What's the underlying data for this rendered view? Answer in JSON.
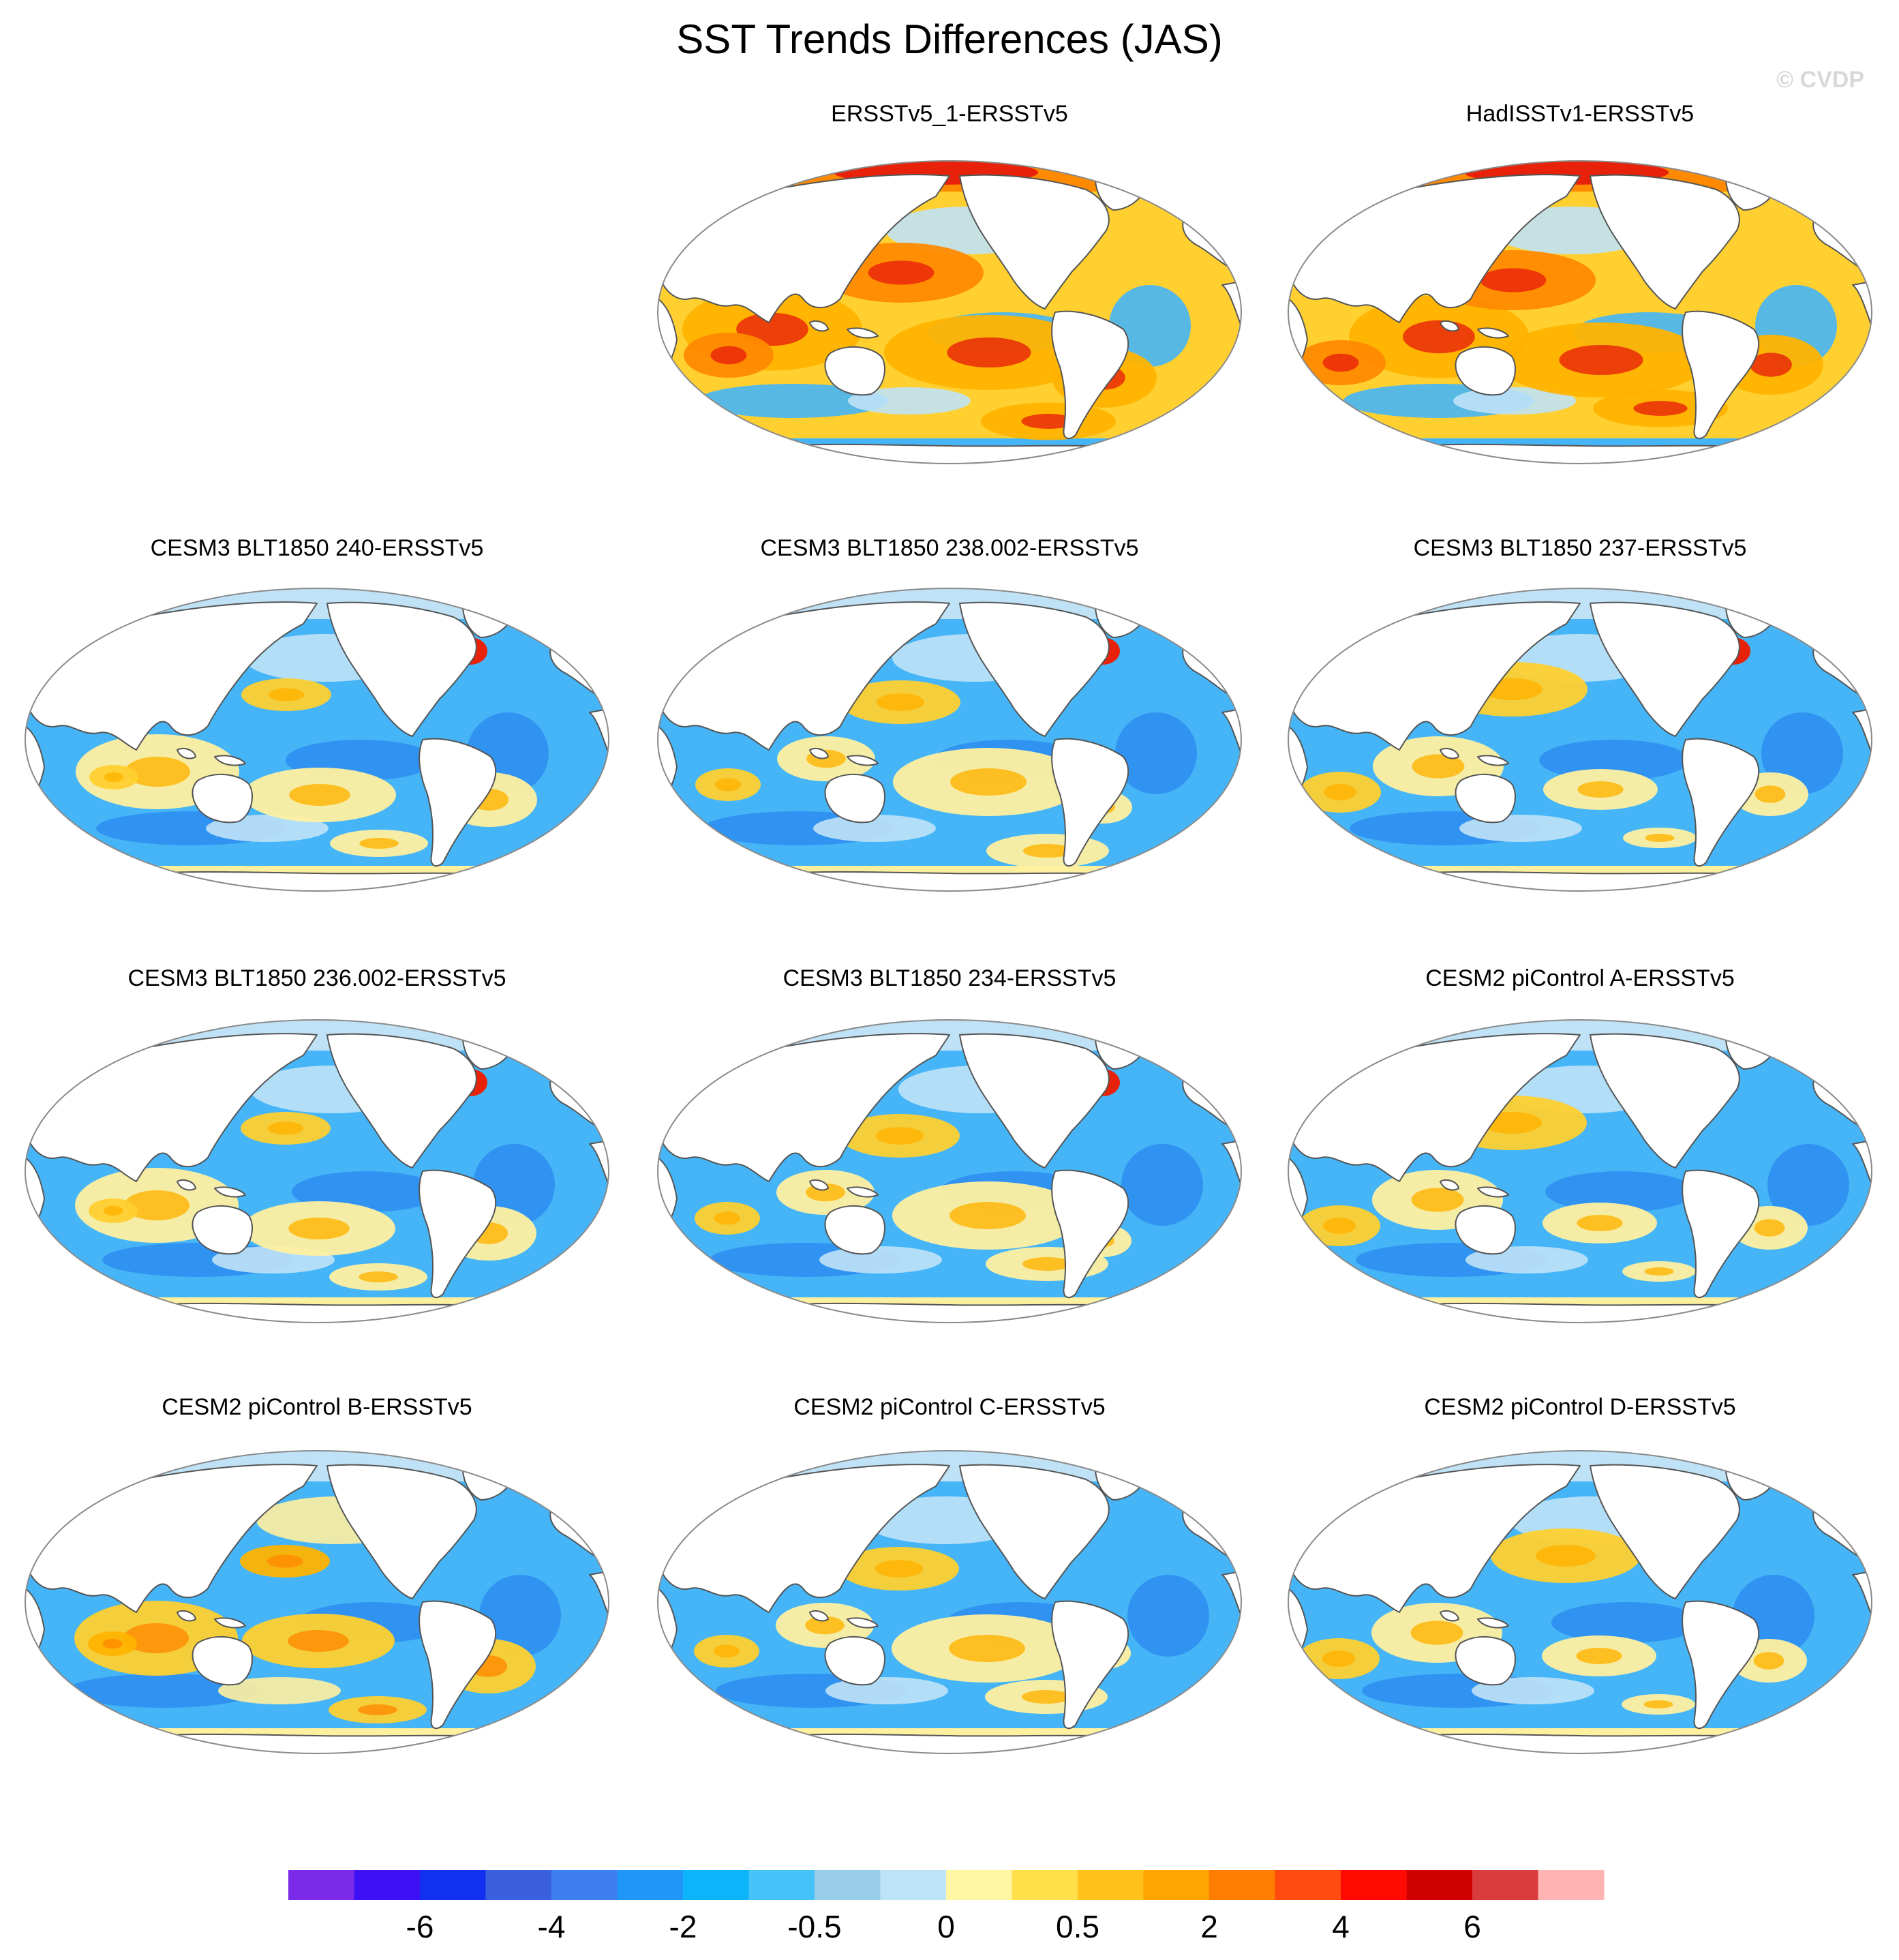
{
  "title": "SST Trends Differences (JAS)",
  "watermark": "© CVDP",
  "chart_data": {
    "type": "heatmap",
    "title": "SST Trends Differences (JAS)",
    "projection": "global map (Robinson-like), Pacific-centered",
    "panels": [
      {
        "name": "ERSSTv5_1-ERSSTv5",
        "row": 0,
        "col": 1,
        "dominant_sign": "positive",
        "pattern": "widespread warm (yellow/orange), strongest in Arctic; cool near Southern Ocean"
      },
      {
        "name": "HadISSTv1-ERSSTv5",
        "row": 0,
        "col": 2,
        "dominant_sign": "positive",
        "pattern": "warm in Arctic and tropics; cool Southern Ocean"
      },
      {
        "name": "CESM3 BLT1850 240-ERSSTv5",
        "row": 1,
        "col": 0,
        "dominant_sign": "negative",
        "pattern": "widespread cool (blue); warm spots NW Atlantic and N Pacific"
      },
      {
        "name": "CESM3 BLT1850 238.002-ERSSTv5",
        "row": 1,
        "col": 1,
        "dominant_sign": "negative",
        "pattern": "cool background; warm band in eastern tropical Pacific"
      },
      {
        "name": "CESM3 BLT1850 237-ERSSTv5",
        "row": 1,
        "col": 2,
        "dominant_sign": "negative",
        "pattern": "cool background; warm streaks in Indian Ocean and South Atlantic"
      },
      {
        "name": "CESM3 BLT1850 236.002-ERSSTv5",
        "row": 2,
        "col": 0,
        "dominant_sign": "negative",
        "pattern": "cool background; strong warm spot in NW Atlantic"
      },
      {
        "name": "CESM3 BLT1850 234-ERSSTv5",
        "row": 2,
        "col": 1,
        "dominant_sign": "negative",
        "pattern": "cool background; warm spot NW Atlantic; warm streaks S Pacific"
      },
      {
        "name": "CESM2 piControl A-ERSSTv5",
        "row": 2,
        "col": 2,
        "dominant_sign": "negative",
        "pattern": "cool background; warm patches SE Pacific and S Atlantic"
      },
      {
        "name": "CESM2 piControl B-ERSSTv5",
        "row": 3,
        "col": 0,
        "dominant_sign": "mixed",
        "pattern": "warm central/eastern Pacific; cool elsewhere"
      },
      {
        "name": "CESM2 piControl C-ERSSTv5",
        "row": 3,
        "col": 1,
        "dominant_sign": "negative",
        "pattern": "cool background; weak warm band in tropical Pacific"
      },
      {
        "name": "CESM2 piControl D-ERSSTv5",
        "row": 3,
        "col": 2,
        "dominant_sign": "negative",
        "pattern": "cool background; warm diagonal band in S Pacific"
      }
    ],
    "colorbar": {
      "colors": [
        "#7b2be8",
        "#3d10f5",
        "#1130f0",
        "#3a60e0",
        "#3e7fef",
        "#1f96f8",
        "#0cb4fa",
        "#45c2f8",
        "#98cde8",
        "#bde4f6",
        "#fff6a3",
        "#ffe04a",
        "#ffc11a",
        "#ffa400",
        "#ff7d00",
        "#ff4a10",
        "#ff0a00",
        "#d10000",
        "#d83c3c",
        "#ffb3b3"
      ],
      "tick_labels": [
        "-6",
        "-4",
        "-2",
        "-0.5",
        "0",
        "0.5",
        "2",
        "4",
        "6"
      ],
      "tick_after_box": [
        1,
        3,
        5,
        7,
        9,
        11,
        13,
        15,
        17
      ]
    }
  },
  "panel_color_key": {
    "warm": {
      "base": "#ffd030",
      "mid": "#ffb300",
      "strong": "#ff8a00",
      "hot": "#e8220a",
      "light": "#fff0a0"
    },
    "cool": {
      "base": "#45b5f7",
      "mid": "#2f8ff0",
      "strong": "#3c5ad8",
      "light": "#bfe2f6",
      "pale": "#93cbee"
    }
  }
}
